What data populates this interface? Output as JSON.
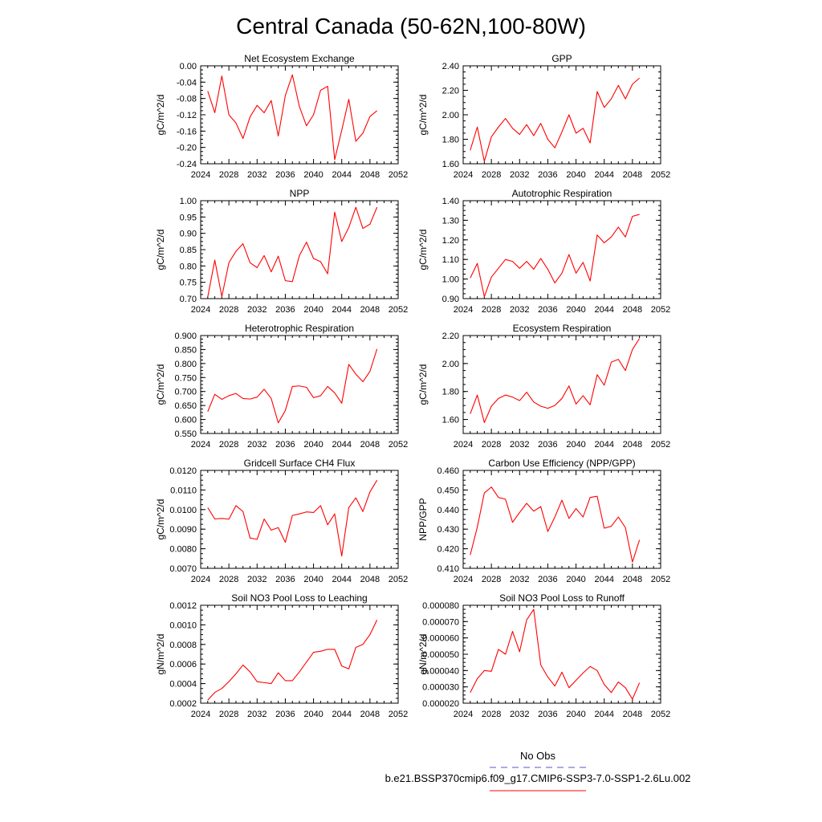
{
  "figure": {
    "title": "Central Canada (50-62N,100-80W)",
    "legend": [
      {
        "label": "No Obs",
        "color": "#5555cc",
        "dash": true
      },
      {
        "label": "b.e21.BSSP370cmip6.f09_g17.CMIP6-SSP3-7.0-SSP1-2.6Lu.002",
        "color": "#ff0000",
        "dash": false
      }
    ]
  },
  "chart_data": [
    {
      "type": "line",
      "title": "Net Ecosystem Exchange",
      "ylabel": "gC/m^2/d",
      "xlim": [
        2024,
        2052
      ],
      "ylim": [
        -0.24,
        0.0
      ],
      "xticks": [
        "2024",
        "2028",
        "2032",
        "2036",
        "2040",
        "2044",
        "2048",
        "2052"
      ],
      "yticks": [
        "0.00",
        "-0.04",
        "-0.08",
        "-0.12",
        "-0.16",
        "-0.20",
        "-0.24"
      ],
      "x": [
        2025,
        2026,
        2027,
        2028,
        2029,
        2030,
        2031,
        2032,
        2033,
        2034,
        2035,
        2036,
        2037,
        2038,
        2039,
        2040,
        2041,
        2042,
        2043,
        2044,
        2045,
        2046,
        2047,
        2048,
        2049
      ],
      "series": [
        {
          "color": "#ff0000",
          "values": [
            -0.062,
            -0.115,
            -0.025,
            -0.12,
            -0.14,
            -0.178,
            -0.125,
            -0.097,
            -0.115,
            -0.085,
            -0.172,
            -0.073,
            -0.022,
            -0.1,
            -0.147,
            -0.12,
            -0.06,
            -0.05,
            -0.23,
            -0.158,
            -0.082,
            -0.185,
            -0.165,
            -0.124,
            -0.11
          ]
        }
      ]
    },
    {
      "type": "line",
      "title": "GPP",
      "ylabel": "gC/m^2/d",
      "xlim": [
        2024,
        2052
      ],
      "ylim": [
        1.6,
        2.4
      ],
      "xticks": [
        "2024",
        "2028",
        "2032",
        "2036",
        "2040",
        "2044",
        "2048",
        "2052"
      ],
      "yticks": [
        "2.40",
        "2.20",
        "2.00",
        "1.80",
        "1.60"
      ],
      "x": [
        2025,
        2026,
        2027,
        2028,
        2029,
        2030,
        2031,
        2032,
        2033,
        2034,
        2035,
        2036,
        2037,
        2038,
        2039,
        2040,
        2041,
        2042,
        2043,
        2044,
        2045,
        2046,
        2047,
        2048,
        2049
      ],
      "series": [
        {
          "color": "#ff0000",
          "values": [
            1.71,
            1.9,
            1.62,
            1.82,
            1.9,
            1.97,
            1.89,
            1.84,
            1.92,
            1.83,
            1.93,
            1.8,
            1.73,
            1.86,
            2.0,
            1.85,
            1.89,
            1.77,
            2.19,
            2.06,
            2.13,
            2.24,
            2.13,
            2.25,
            2.3
          ]
        }
      ]
    },
    {
      "type": "line",
      "title": "NPP",
      "ylabel": "gC/m^2/d",
      "xlim": [
        2024,
        2052
      ],
      "ylim": [
        0.7,
        1.0
      ],
      "xticks": [
        "2024",
        "2028",
        "2032",
        "2036",
        "2040",
        "2044",
        "2048",
        "2052"
      ],
      "yticks": [
        "1.00",
        "0.95",
        "0.90",
        "0.85",
        "0.80",
        "0.75",
        "0.70"
      ],
      "x": [
        2025,
        2026,
        2027,
        2028,
        2029,
        2030,
        2031,
        2032,
        2033,
        2034,
        2035,
        2036,
        2037,
        2038,
        2039,
        2040,
        2041,
        2042,
        2043,
        2044,
        2045,
        2046,
        2047,
        2048,
        2049
      ],
      "series": [
        {
          "color": "#ff0000",
          "values": [
            0.705,
            0.818,
            0.706,
            0.81,
            0.845,
            0.868,
            0.81,
            0.795,
            0.832,
            0.782,
            0.83,
            0.755,
            0.752,
            0.832,
            0.873,
            0.823,
            0.813,
            0.776,
            0.965,
            0.875,
            0.918,
            0.98,
            0.915,
            0.928,
            0.98
          ]
        }
      ]
    },
    {
      "type": "line",
      "title": "Autotrophic Respiration",
      "ylabel": "gC/m^2/d",
      "xlim": [
        2024,
        2052
      ],
      "ylim": [
        0.9,
        1.4
      ],
      "xticks": [
        "2024",
        "2028",
        "2032",
        "2036",
        "2040",
        "2044",
        "2048",
        "2052"
      ],
      "yticks": [
        "1.40",
        "1.30",
        "1.20",
        "1.10",
        "1.00",
        "0.90"
      ],
      "x": [
        2025,
        2026,
        2027,
        2028,
        2029,
        2030,
        2031,
        2032,
        2033,
        2034,
        2035,
        2036,
        2037,
        2038,
        2039,
        2040,
        2041,
        2042,
        2043,
        2044,
        2045,
        2046,
        2047,
        2048,
        2049
      ],
      "series": [
        {
          "color": "#ff0000",
          "values": [
            1.005,
            1.08,
            0.91,
            1.01,
            1.055,
            1.1,
            1.09,
            1.055,
            1.09,
            1.05,
            1.105,
            1.05,
            0.98,
            1.03,
            1.125,
            1.03,
            1.085,
            0.99,
            1.225,
            1.185,
            1.215,
            1.265,
            1.215,
            1.32,
            1.33
          ]
        }
      ]
    },
    {
      "type": "line",
      "title": "Heterotrophic Respiration",
      "ylabel": "gC/m^2/d",
      "xlim": [
        2024,
        2052
      ],
      "ylim": [
        0.55,
        0.9
      ],
      "xticks": [
        "2024",
        "2028",
        "2032",
        "2036",
        "2040",
        "2044",
        "2048",
        "2052"
      ],
      "yticks": [
        "0.900",
        "0.850",
        "0.800",
        "0.750",
        "0.700",
        "0.650",
        "0.600",
        "0.550"
      ],
      "x": [
        2025,
        2026,
        2027,
        2028,
        2029,
        2030,
        2031,
        2032,
        2033,
        2034,
        2035,
        2036,
        2037,
        2038,
        2039,
        2040,
        2041,
        2042,
        2043,
        2044,
        2045,
        2046,
        2047,
        2048,
        2049
      ],
      "series": [
        {
          "color": "#ff0000",
          "values": [
            0.628,
            0.69,
            0.672,
            0.685,
            0.693,
            0.675,
            0.673,
            0.68,
            0.708,
            0.675,
            0.588,
            0.632,
            0.718,
            0.72,
            0.715,
            0.678,
            0.685,
            0.718,
            0.695,
            0.658,
            0.797,
            0.762,
            0.735,
            0.772,
            0.852
          ]
        }
      ]
    },
    {
      "type": "line",
      "title": "Ecosystem Respiration",
      "ylabel": "gC/m^2/d",
      "xlim": [
        2024,
        2052
      ],
      "ylim": [
        1.5,
        2.2
      ],
      "xticks": [
        "2024",
        "2028",
        "2032",
        "2036",
        "2040",
        "2044",
        "2048",
        "2052"
      ],
      "yticks": [
        "2.20",
        "2.00",
        "1.80",
        "1.60"
      ],
      "x": [
        2025,
        2026,
        2027,
        2028,
        2029,
        2030,
        2031,
        2032,
        2033,
        2034,
        2035,
        2036,
        2037,
        2038,
        2039,
        2040,
        2041,
        2042,
        2043,
        2044,
        2045,
        2046,
        2047,
        2048,
        2049
      ],
      "series": [
        {
          "color": "#ff0000",
          "values": [
            1.64,
            1.775,
            1.578,
            1.695,
            1.75,
            1.775,
            1.76,
            1.735,
            1.795,
            1.725,
            1.695,
            1.68,
            1.7,
            1.75,
            1.84,
            1.71,
            1.77,
            1.705,
            1.92,
            1.845,
            2.01,
            2.03,
            1.95,
            2.1,
            2.18
          ]
        }
      ]
    },
    {
      "type": "line",
      "title": "Gridcell Surface CH4 Flux",
      "ylabel": "gC/m^2/d",
      "xlim": [
        2024,
        2052
      ],
      "ylim": [
        0.007,
        0.012
      ],
      "xticks": [
        "2024",
        "2028",
        "2032",
        "2036",
        "2040",
        "2044",
        "2048",
        "2052"
      ],
      "yticks": [
        "0.0120",
        "0.0110",
        "0.0100",
        "0.0090",
        "0.0080",
        "0.0070"
      ],
      "x": [
        2025,
        2026,
        2027,
        2028,
        2029,
        2030,
        2031,
        2032,
        2033,
        2034,
        2035,
        2036,
        2037,
        2038,
        2039,
        2040,
        2041,
        2042,
        2043,
        2044,
        2045,
        2046,
        2047,
        2048,
        2049
      ],
      "series": [
        {
          "color": "#ff0000",
          "values": [
            0.0101,
            0.00952,
            0.00955,
            0.00951,
            0.0102,
            0.0099,
            0.00855,
            0.00848,
            0.00952,
            0.00895,
            0.00908,
            0.00833,
            0.0097,
            0.00978,
            0.00988,
            0.00985,
            0.0102,
            0.00922,
            0.00978,
            0.00763,
            0.0101,
            0.0106,
            0.0099,
            0.0109,
            0.0115
          ]
        }
      ]
    },
    {
      "type": "line",
      "title": "Carbon Use Efficiency (NPP/GPP)",
      "ylabel": "NPP/GPP",
      "xlim": [
        2024,
        2052
      ],
      "ylim": [
        0.41,
        0.46
      ],
      "xticks": [
        "2024",
        "2028",
        "2032",
        "2036",
        "2040",
        "2044",
        "2048",
        "2052"
      ],
      "yticks": [
        "0.460",
        "0.450",
        "0.440",
        "0.430",
        "0.420",
        "0.410"
      ],
      "x": [
        2025,
        2026,
        2027,
        2028,
        2029,
        2030,
        2031,
        2032,
        2033,
        2034,
        2035,
        2036,
        2037,
        2038,
        2039,
        2040,
        2041,
        2042,
        2043,
        2044,
        2045,
        2046,
        2047,
        2048,
        2049
      ],
      "series": [
        {
          "color": "#ff0000",
          "values": [
            0.4168,
            0.431,
            0.4485,
            0.4515,
            0.4462,
            0.4453,
            0.4335,
            0.4385,
            0.4432,
            0.4392,
            0.4415,
            0.4288,
            0.4362,
            0.4448,
            0.4355,
            0.4405,
            0.4362,
            0.4462,
            0.4468,
            0.4305,
            0.4315,
            0.4362,
            0.4308,
            0.4132,
            0.4245
          ]
        }
      ]
    },
    {
      "type": "line",
      "title": "Soil NO3 Pool Loss to Leaching",
      "ylabel": "gN/m^2/d",
      "xlim": [
        2024,
        2052
      ],
      "ylim": [
        0.0002,
        0.0012
      ],
      "xticks": [
        "2024",
        "2028",
        "2032",
        "2036",
        "2040",
        "2044",
        "2048",
        "2052"
      ],
      "yticks": [
        "0.0012",
        "0.0010",
        "0.0008",
        "0.0006",
        "0.0004",
        "0.0002"
      ],
      "x": [
        2025,
        2026,
        2027,
        2028,
        2029,
        2030,
        2031,
        2032,
        2033,
        2034,
        2035,
        2036,
        2037,
        2038,
        2039,
        2040,
        2041,
        2042,
        2043,
        2044,
        2045,
        2046,
        2047,
        2048,
        2049
      ],
      "series": [
        {
          "color": "#ff0000",
          "values": [
            0.000232,
            0.00031,
            0.00035,
            0.00042,
            0.0005,
            0.00059,
            0.00052,
            0.00042,
            0.00041,
            0.0004,
            0.00051,
            0.00043,
            0.00043,
            0.00052,
            0.00062,
            0.00072,
            0.00073,
            0.00075,
            0.00075,
            0.00058,
            0.00055,
            0.00077,
            0.0008,
            0.0009,
            0.00105
          ]
        }
      ]
    },
    {
      "type": "line",
      "title": "Soil NO3 Pool Loss to Runoff",
      "ylabel": "gN/m^2/d",
      "xlim": [
        2024,
        2052
      ],
      "ylim": [
        2e-05,
        8e-05
      ],
      "xticks": [
        "2024",
        "2028",
        "2032",
        "2036",
        "2040",
        "2044",
        "2048",
        "2052"
      ],
      "yticks": [
        "0.000080",
        "0.000070",
        "0.000060",
        "0.000050",
        "0.000040",
        "0.000030",
        "0.000020"
      ],
      "x": [
        2025,
        2026,
        2027,
        2028,
        2029,
        2030,
        2031,
        2032,
        2033,
        2034,
        2035,
        2036,
        2037,
        2038,
        2039,
        2040,
        2041,
        2042,
        2043,
        2044,
        2045,
        2046,
        2047,
        2048,
        2049
      ],
      "series": [
        {
          "color": "#ff0000",
          "values": [
            2.65e-05,
            3.5e-05,
            4e-05,
            3.95e-05,
            5.3e-05,
            5e-05,
            6.4e-05,
            5.15e-05,
            7.1e-05,
            7.75e-05,
            4.35e-05,
            3.6e-05,
            3.05e-05,
            3.9e-05,
            2.95e-05,
            3.4e-05,
            3.85e-05,
            4.25e-05,
            4e-05,
            3.15e-05,
            2.65e-05,
            3.3e-05,
            2.95e-05,
            2.25e-05,
            3.25e-05
          ]
        }
      ]
    }
  ]
}
